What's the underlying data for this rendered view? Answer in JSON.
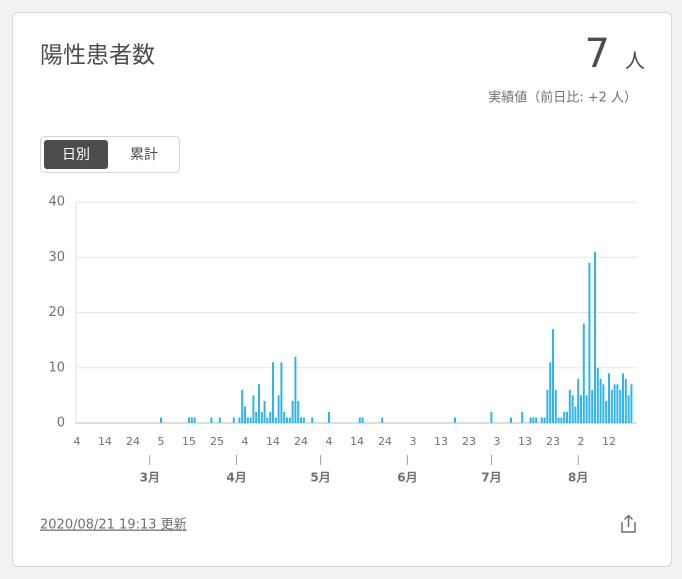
{
  "header": {
    "title": "陽性患者数",
    "value": 7,
    "unit": "人",
    "note": "実績値（前日比: +2 人）"
  },
  "toggle": {
    "options": [
      "日別",
      "累計"
    ]
  },
  "footer": {
    "updated": "2020/08/21 19:13 更新"
  },
  "chart_data": {
    "type": "bar",
    "color": "#33b3e6",
    "grid": true,
    "ylim": [
      0,
      40
    ],
    "yticks": [
      0,
      10,
      20,
      30,
      40
    ],
    "categories": [
      "4",
      null,
      null,
      null,
      null,
      null,
      null,
      null,
      null,
      null,
      "14",
      null,
      null,
      null,
      null,
      null,
      null,
      null,
      null,
      null,
      "24",
      null,
      null,
      null,
      null,
      null,
      null,
      null,
      null,
      null,
      "5",
      null,
      null,
      null,
      null,
      null,
      null,
      null,
      null,
      null,
      "15",
      null,
      null,
      null,
      null,
      null,
      null,
      null,
      null,
      null,
      "25",
      null,
      null,
      null,
      null,
      null,
      null,
      null,
      null,
      null,
      "4",
      null,
      null,
      null,
      null,
      null,
      null,
      null,
      null,
      null,
      "14",
      null,
      null,
      null,
      null,
      null,
      null,
      null,
      null,
      null,
      "24",
      null,
      null,
      null,
      null,
      null,
      null,
      null,
      null,
      null,
      "4",
      null,
      null,
      null,
      null,
      null,
      null,
      null,
      null,
      null,
      "14",
      null,
      null,
      null,
      null,
      null,
      null,
      null,
      null,
      null,
      "24",
      null,
      null,
      null,
      null,
      null,
      null,
      null,
      null,
      null,
      "3",
      null,
      null,
      null,
      null,
      null,
      null,
      null,
      null,
      null,
      "13",
      null,
      null,
      null,
      null,
      null,
      null,
      null,
      null,
      null,
      "23",
      null,
      null,
      null,
      null,
      null,
      null,
      null,
      null,
      null,
      "3",
      null,
      null,
      null,
      null,
      null,
      null,
      null,
      null,
      null,
      "13",
      null,
      null,
      null,
      null,
      null,
      null,
      null,
      null,
      null,
      "23",
      null,
      null,
      null,
      null,
      null,
      null,
      null,
      null,
      null,
      "2",
      null,
      null,
      null,
      null,
      null,
      null,
      null,
      null,
      null,
      "12",
      null,
      null,
      null,
      null,
      null,
      null,
      null,
      null
    ],
    "months": [
      null,
      null,
      null,
      null,
      null,
      null,
      null,
      null,
      null,
      null,
      null,
      null,
      null,
      null,
      null,
      null,
      null,
      null,
      null,
      null,
      null,
      null,
      null,
      null,
      null,
      null,
      "3月",
      null,
      null,
      null,
      null,
      null,
      null,
      null,
      null,
      null,
      null,
      null,
      null,
      null,
      null,
      null,
      null,
      null,
      null,
      null,
      null,
      null,
      null,
      null,
      null,
      null,
      null,
      null,
      null,
      null,
      null,
      "4月",
      null,
      null,
      null,
      null,
      null,
      null,
      null,
      null,
      null,
      null,
      null,
      null,
      null,
      null,
      null,
      null,
      null,
      null,
      null,
      null,
      null,
      null,
      null,
      null,
      null,
      null,
      null,
      null,
      null,
      "5月",
      null,
      null,
      null,
      null,
      null,
      null,
      null,
      null,
      null,
      null,
      null,
      null,
      null,
      null,
      null,
      null,
      null,
      null,
      null,
      null,
      null,
      null,
      null,
      null,
      null,
      null,
      null,
      null,
      null,
      null,
      "6月",
      null,
      null,
      null,
      null,
      null,
      null,
      null,
      null,
      null,
      null,
      null,
      null,
      null,
      null,
      null,
      null,
      null,
      null,
      null,
      null,
      null,
      null,
      null,
      null,
      null,
      null,
      null,
      null,
      null,
      "7月",
      null,
      null,
      null,
      null,
      null,
      null,
      null,
      null,
      null,
      null,
      null,
      null,
      null,
      null,
      null,
      null,
      null,
      null,
      null,
      null,
      null,
      null,
      null,
      null,
      null,
      null,
      null,
      null,
      null,
      null,
      "8月",
      null,
      null,
      null,
      null,
      null,
      null,
      null,
      null,
      null,
      null,
      null,
      null,
      null,
      null,
      null,
      null,
      null,
      null,
      null
    ],
    "values": [
      0,
      0,
      0,
      0,
      0,
      0,
      0,
      0,
      0,
      0,
      0,
      0,
      0,
      0,
      0,
      0,
      0,
      0,
      0,
      0,
      0,
      0,
      0,
      0,
      0,
      0,
      0,
      0,
      0,
      0,
      1,
      0,
      0,
      0,
      0,
      0,
      0,
      0,
      0,
      0,
      1,
      1,
      1,
      0,
      0,
      0,
      0,
      0,
      1,
      0,
      0,
      1,
      0,
      0,
      0,
      0,
      1,
      0,
      1,
      6,
      3,
      1,
      1,
      5,
      2,
      7,
      2,
      4,
      1,
      2,
      11,
      1,
      5,
      11,
      2,
      1,
      1,
      4,
      12,
      4,
      1,
      1,
      0,
      0,
      1,
      0,
      0,
      0,
      0,
      0,
      2,
      0,
      0,
      0,
      0,
      0,
      0,
      0,
      0,
      0,
      0,
      1,
      1,
      0,
      0,
      0,
      0,
      0,
      0,
      1,
      0,
      0,
      0,
      0,
      0,
      0,
      0,
      0,
      0,
      0,
      0,
      0,
      0,
      0,
      0,
      0,
      0,
      0,
      0,
      0,
      0,
      0,
      0,
      0,
      0,
      1,
      0,
      0,
      0,
      0,
      0,
      0,
      0,
      0,
      0,
      0,
      0,
      0,
      2,
      0,
      0,
      0,
      0,
      0,
      0,
      1,
      0,
      0,
      0,
      2,
      0,
      0,
      1,
      1,
      1,
      0,
      1,
      1,
      6,
      11,
      17,
      6,
      1,
      1,
      2,
      2,
      6,
      5,
      3,
      8,
      5,
      18,
      5,
      29,
      6,
      31,
      10,
      8,
      7,
      4,
      9,
      6,
      7,
      7,
      6,
      9,
      8,
      5,
      7
    ]
  }
}
